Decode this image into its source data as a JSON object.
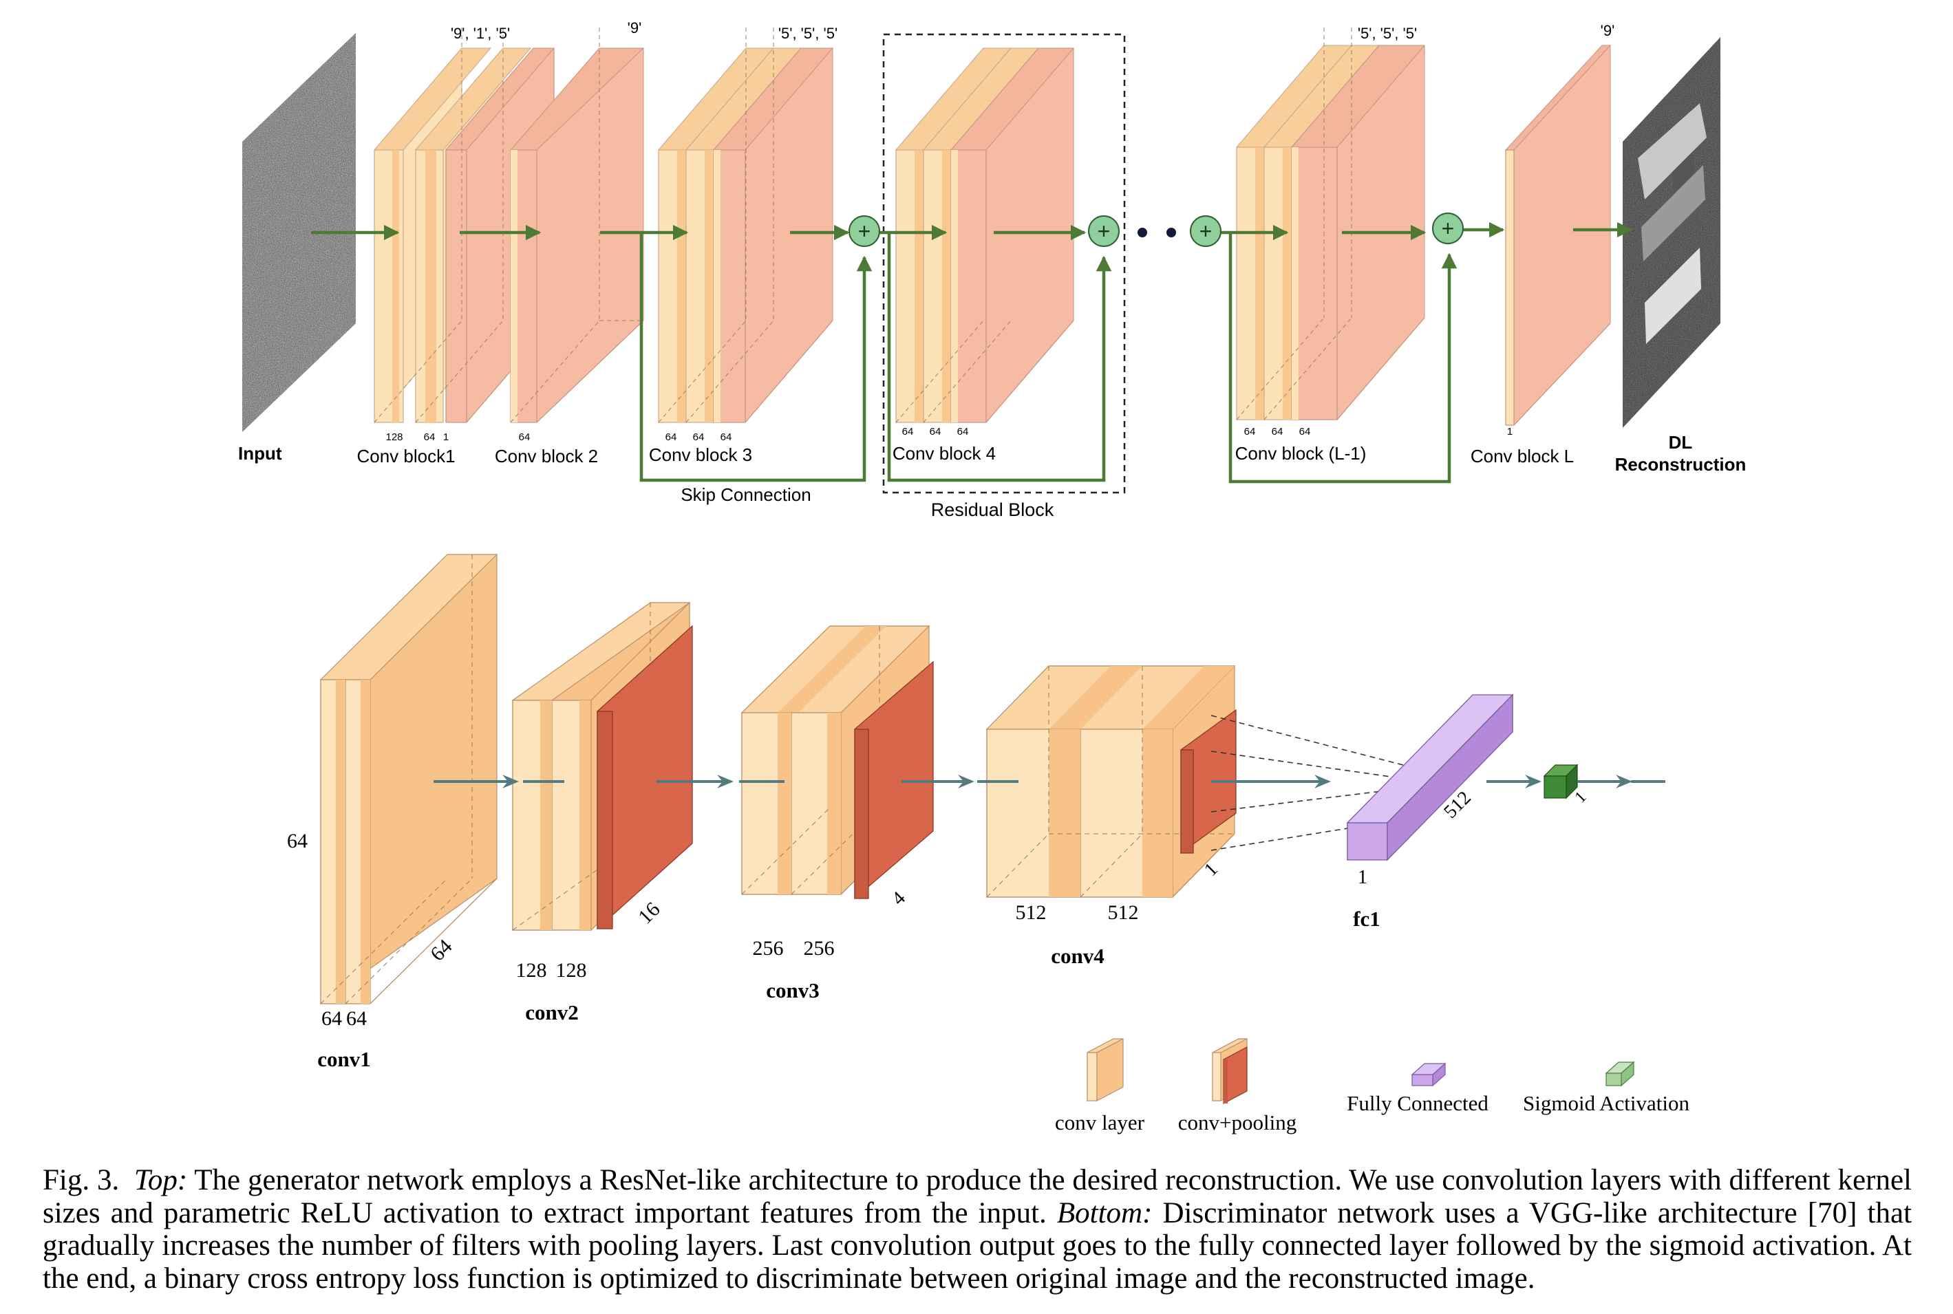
{
  "generator": {
    "input_label": "Input",
    "blocks": [
      {
        "label": "Conv block1",
        "kernels": "'9',  '1', '5'",
        "channels": [
          "128",
          "64",
          "1"
        ]
      },
      {
        "label": "Conv block 2",
        "kernels": "'9'",
        "channels": [
          "64"
        ]
      },
      {
        "label": "Conv block 3",
        "kernels": "'5', '5', '5'",
        "channels": [
          "64",
          "64",
          "64"
        ]
      },
      {
        "label": "Conv block 4",
        "kernels": "",
        "channels": [
          "64",
          "64",
          "64"
        ]
      },
      {
        "label": "Conv block (L-1)",
        "kernels": "'5', '5', '5'",
        "channels": [
          "64",
          "64",
          "64"
        ]
      },
      {
        "label": "Conv block L",
        "kernels": "'9'",
        "channels": [
          "1"
        ]
      }
    ],
    "skip_connection_label": "Skip Connection",
    "residual_block_label": "Residual Block",
    "output_label_line1": "DL",
    "output_label_line2": "Reconstruction",
    "plus_symbol": "+",
    "colors": {
      "arrow": "#4d7a35",
      "plus_fill": "#8fcf9b",
      "block_salmon": "#f5bca3",
      "block_cream": "#fde2b8"
    }
  },
  "discriminator": {
    "conv1": {
      "label": "conv1",
      "height_label": "64",
      "width_label": "64",
      "ch1": "64",
      "ch2": "64"
    },
    "conv2": {
      "label": "conv2",
      "width_label": "16",
      "ch1": "128",
      "ch2": "128"
    },
    "conv3": {
      "label": "conv3",
      "width_label": "4",
      "ch1": "256",
      "ch2": "256"
    },
    "conv4": {
      "label": "conv4",
      "width_label": "1",
      "ch1": "512",
      "ch2": "512"
    },
    "fc1": {
      "label": "fc1",
      "length_label": "512",
      "depth_label": "1"
    },
    "sigmoid": {
      "label": "1"
    },
    "colors": {
      "orange": "#f7c388",
      "cream": "#fde4bd",
      "red": "#d9664a",
      "purple": "#c9a7e8",
      "green": "#3f8a37",
      "arrow": "#557a7f"
    }
  },
  "legend": {
    "conv_layer": "conv layer",
    "conv_pooling": "conv+pooling",
    "fully_connected": "Fully Connected",
    "sigmoid_activation": "Sigmoid Activation"
  },
  "caption": {
    "fig": "Fig. 3.",
    "top_label": "Top:",
    "top_text": "The generator network employs a ResNet-like architecture to produce the desired reconstruction. We use convolution layers with different kernel sizes and parametric ReLU activation to extract important features from the input.",
    "bottom_label": "Bottom:",
    "bottom_text": "Discriminator network uses a VGG-like architecture [70] that gradually increases the number of filters with pooling layers. Last convolution output goes to the fully connected layer followed by the sigmoid activation. At the end, a binary cross entropy loss function is optimized to discriminate between original image and the reconstructed image."
  }
}
